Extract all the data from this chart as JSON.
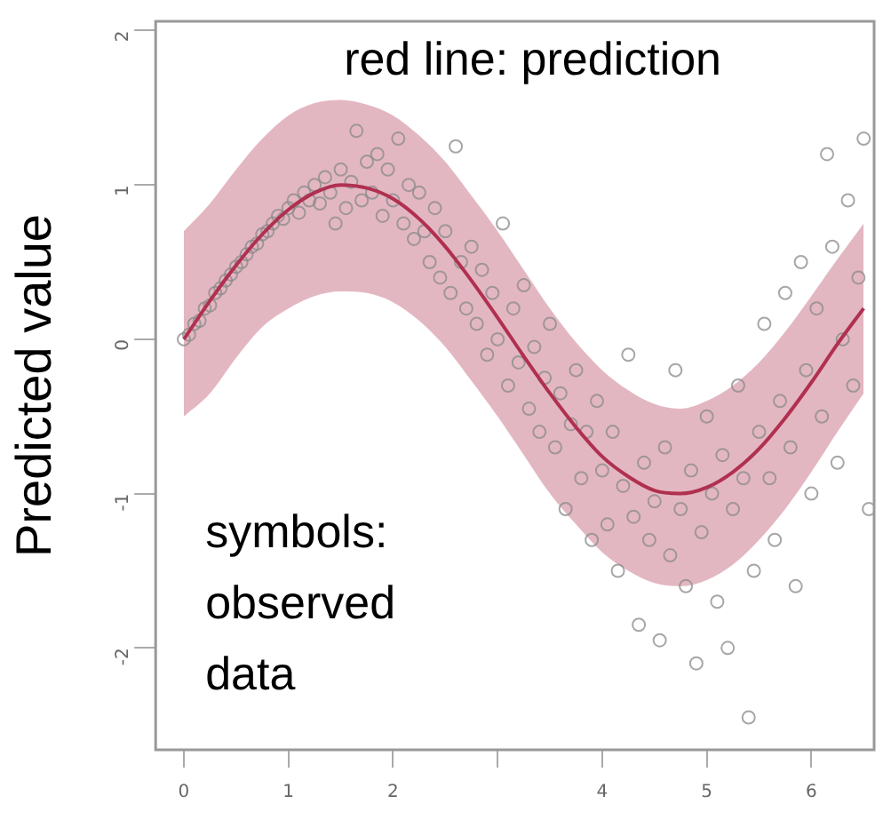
{
  "chart_data": {
    "type": "scatter",
    "ylabel": "Predicted value",
    "annotations": [
      "red line: prediction",
      "symbols: observed data"
    ],
    "xlim": [
      -0.27,
      6.6
    ],
    "ylim": [
      -2.66,
      2.06
    ],
    "xticks": [
      0,
      1,
      2,
      {
        "value": 3,
        "label": null
      },
      4,
      5,
      6
    ],
    "yticks": [
      -2,
      -1,
      0,
      1,
      2
    ],
    "grid": false,
    "legend": false,
    "series": [
      {
        "type": "scatter",
        "marker": "circle",
        "color": "#8a8a8a",
        "x": [
          0,
          0.05,
          0.1,
          0.15,
          0.2,
          0.25,
          0.3,
          0.35,
          0.4,
          0.45,
          0.5,
          0.55,
          0.6,
          0.65,
          0.7,
          0.75,
          0.8,
          0.85,
          0.9,
          0.95,
          1.0,
          1.05,
          1.1,
          1.15,
          1.2,
          1.25,
          1.3,
          1.35,
          1.4,
          1.45,
          1.5,
          1.55,
          1.6,
          1.65,
          1.7,
          1.75,
          1.8,
          1.85,
          1.9,
          1.95,
          2.0,
          2.05,
          2.1,
          2.15,
          2.2,
          2.25,
          2.3,
          2.35,
          2.4,
          2.45,
          2.5,
          2.55,
          2.6,
          2.65,
          2.7,
          2.75,
          2.8,
          2.85,
          2.9,
          2.95,
          3.0,
          3.05,
          3.1,
          3.15,
          3.2,
          3.25,
          3.3,
          3.35,
          3.4,
          3.45,
          3.5,
          3.55,
          3.6,
          3.65,
          3.7,
          3.75,
          3.8,
          3.85,
          3.9,
          3.95,
          4.0,
          4.05,
          4.1,
          4.15,
          4.2,
          4.25,
          4.3,
          4.35,
          4.4,
          4.45,
          4.5,
          4.55,
          4.6,
          4.65,
          4.7,
          4.75,
          4.8,
          4.85,
          4.9,
          4.95,
          5.0,
          5.05,
          5.1,
          5.15,
          5.2,
          5.25,
          5.3,
          5.35,
          5.4,
          5.45,
          5.5,
          5.55,
          5.6,
          5.65,
          5.7,
          5.75,
          5.8,
          5.85,
          5.9,
          5.95,
          6.0,
          6.05,
          6.1,
          6.15,
          6.2,
          6.25,
          6.3,
          6.35,
          6.4,
          6.45,
          6.5,
          6.55
        ],
        "values": [
          0,
          0.03,
          0.1,
          0.12,
          0.2,
          0.22,
          0.3,
          0.33,
          0.38,
          0.42,
          0.47,
          0.5,
          0.55,
          0.6,
          0.62,
          0.68,
          0.7,
          0.75,
          0.8,
          0.78,
          0.85,
          0.9,
          0.82,
          0.95,
          0.9,
          1.0,
          0.88,
          1.05,
          0.95,
          0.75,
          1.1,
          0.85,
          1.02,
          1.35,
          0.9,
          1.15,
          0.95,
          1.2,
          0.8,
          1.1,
          0.9,
          1.3,
          0.75,
          1.0,
          0.65,
          0.95,
          0.7,
          0.5,
          0.85,
          0.4,
          0.7,
          0.3,
          1.25,
          0.5,
          0.2,
          0.6,
          0.1,
          0.45,
          -0.1,
          0.3,
          0.0,
          0.75,
          -0.3,
          0.2,
          -0.15,
          0.35,
          -0.45,
          -0.05,
          -0.6,
          -0.25,
          0.1,
          -0.7,
          -0.35,
          -1.1,
          -0.55,
          -0.2,
          -0.9,
          -0.6,
          -1.3,
          -0.4,
          -0.85,
          -1.2,
          -0.6,
          -1.5,
          -0.95,
          -0.1,
          -1.15,
          -1.85,
          -0.8,
          -1.3,
          -1.05,
          -1.95,
          -0.7,
          -1.4,
          -0.2,
          -1.1,
          -1.6,
          -0.85,
          -2.1,
          -1.25,
          -0.5,
          -1.0,
          -1.7,
          -0.75,
          -2.0,
          -1.1,
          -0.3,
          -0.9,
          -2.45,
          -1.5,
          -0.6,
          0.1,
          -0.9,
          -1.3,
          -0.4,
          0.3,
          -0.7,
          -1.6,
          0.5,
          -0.2,
          -1.0,
          0.2,
          -0.5,
          1.2,
          0.6,
          -0.8,
          0.0,
          0.9,
          -0.3,
          0.4,
          1.3,
          -1.1
        ]
      },
      {
        "type": "line",
        "color": "#b03050",
        "x": [
          0,
          0.25,
          0.5,
          0.75,
          1,
          1.25,
          1.5,
          1.75,
          2,
          2.25,
          2.5,
          2.75,
          3,
          3.25,
          3.5,
          3.75,
          4,
          4.25,
          4.5,
          4.75,
          5,
          5.25,
          5.5,
          5.75,
          6,
          6.25,
          6.5
        ],
        "values": [
          0,
          0.25,
          0.48,
          0.68,
          0.84,
          0.95,
          1.0,
          0.98,
          0.91,
          0.78,
          0.6,
          0.38,
          0.14,
          -0.11,
          -0.35,
          -0.57,
          -0.76,
          -0.89,
          -0.98,
          -1.0,
          -0.96,
          -0.86,
          -0.71,
          -0.51,
          -0.28,
          -0.03,
          0.2
        ],
        "upper": [
          0.7,
          0.88,
          1.1,
          1.3,
          1.45,
          1.53,
          1.55,
          1.52,
          1.45,
          1.32,
          1.15,
          0.93,
          0.7,
          0.45,
          0.2,
          -0.02,
          -0.2,
          -0.33,
          -0.42,
          -0.45,
          -0.4,
          -0.3,
          -0.15,
          0.05,
          0.28,
          0.52,
          0.75
        ],
        "lower": [
          -0.5,
          -0.35,
          -0.12,
          0.08,
          0.2,
          0.28,
          0.31,
          0.3,
          0.24,
          0.12,
          -0.05,
          -0.27,
          -0.5,
          -0.75,
          -1.0,
          -1.2,
          -1.38,
          -1.5,
          -1.58,
          -1.6,
          -1.56,
          -1.46,
          -1.3,
          -1.1,
          -0.86,
          -0.6,
          -0.35
        ]
      }
    ]
  }
}
